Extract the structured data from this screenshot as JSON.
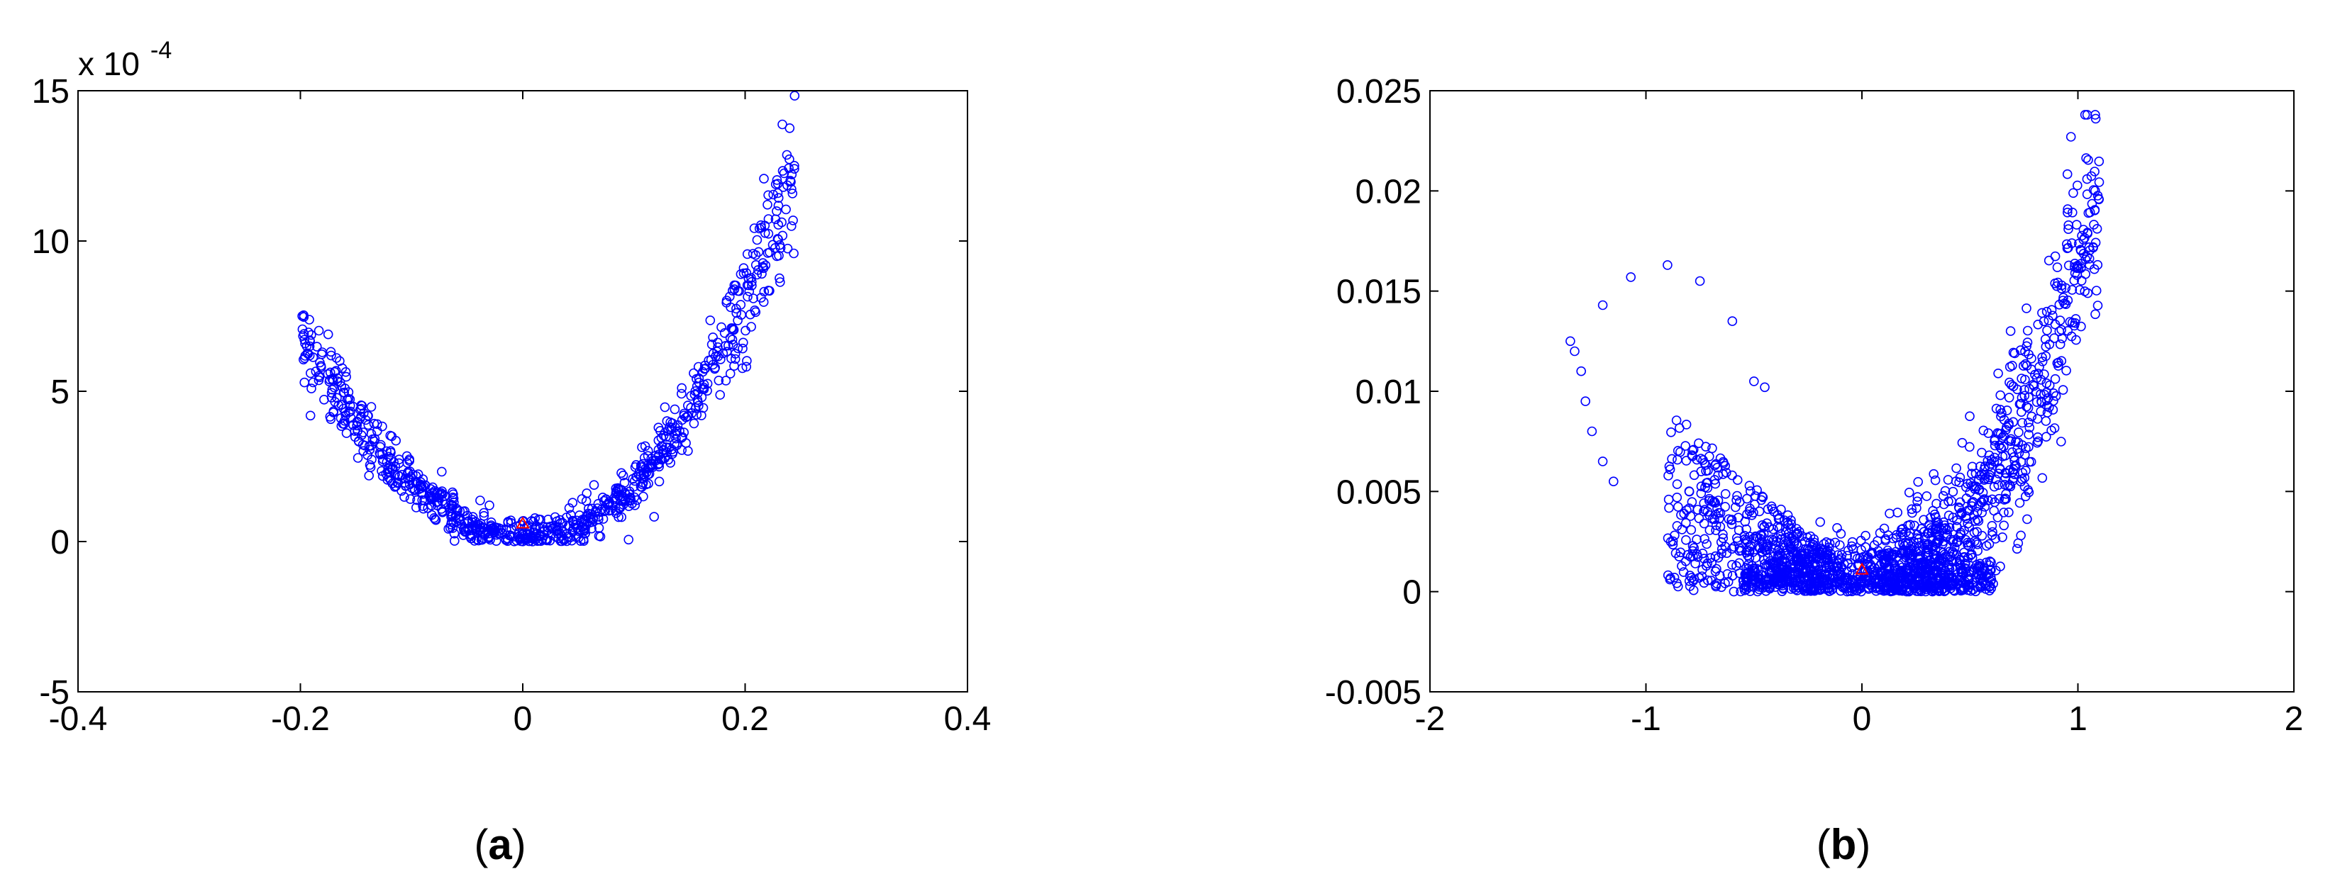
{
  "chart_data": [
    {
      "type": "scatter",
      "panel_label": "a",
      "xlim": [
        -0.4,
        0.4
      ],
      "ylim": [
        -5,
        15
      ],
      "x_ticks": [
        -0.4,
        -0.2,
        0,
        0.2,
        0.4
      ],
      "x_tick_labels": [
        "-0.4",
        "-0.2",
        "0",
        "0.2",
        "0.4"
      ],
      "y_ticks": [
        -5,
        0,
        5,
        10,
        15
      ],
      "y_tick_labels": [
        "-5",
        "0",
        "5",
        "10",
        "15"
      ],
      "y_exponent_label": "x 10",
      "y_exponent": "-4",
      "grid": false,
      "series": [
        {
          "marker": "circle",
          "color": "#0000ff",
          "shape": "u-band",
          "x_range": [
            -0.2,
            0.245
          ],
          "curve": [
            [
              -0.2,
              6.9
            ],
            [
              -0.18,
              5.5
            ],
            [
              -0.15,
              4.0
            ],
            [
              -0.1,
              2.0
            ],
            [
              -0.05,
              0.6
            ],
            [
              0.0,
              0.15
            ],
            [
              0.05,
              0.5
            ],
            [
              0.1,
              1.8
            ],
            [
              0.15,
              4.3
            ],
            [
              0.2,
              8.0
            ],
            [
              0.245,
              12.3
            ]
          ],
          "count": 900
        },
        {
          "marker": "triangle",
          "color": "#ff0000",
          "points": [
            [
              0.0,
              0.6
            ]
          ]
        }
      ]
    },
    {
      "type": "scatter",
      "panel_label": "b",
      "xlim": [
        -2,
        2
      ],
      "ylim": [
        -0.005,
        0.025
      ],
      "x_ticks": [
        -2,
        -1,
        0,
        1,
        2
      ],
      "x_tick_labels": [
        "-2",
        "-1",
        "0",
        "1",
        "2"
      ],
      "y_ticks": [
        -0.005,
        0,
        0.005,
        0.01,
        0.015,
        0.02,
        0.025
      ],
      "y_tick_labels": [
        "-0.005",
        "0",
        "0.005",
        "0.01",
        "0.015",
        "0.02",
        "0.025"
      ],
      "grid": false,
      "series": [
        {
          "marker": "circle",
          "color": "#0000ff",
          "shape": "v-cloud",
          "x_range": [
            -1.35,
            1.1
          ],
          "outliers": [
            [
              -1.35,
              0.0125
            ],
            [
              -1.33,
              0.012
            ],
            [
              -1.3,
              0.011
            ],
            [
              -1.28,
              0.0095
            ],
            [
              -1.25,
              0.008
            ],
            [
              -1.2,
              0.0065
            ],
            [
              -1.15,
              0.0055
            ],
            [
              -1.07,
              0.0157
            ],
            [
              -1.2,
              0.0143
            ],
            [
              -0.9,
              0.0163
            ],
            [
              -0.75,
              0.0155
            ],
            [
              -0.6,
              0.0135
            ],
            [
              -0.5,
              0.0105
            ],
            [
              -0.45,
              0.0102
            ]
          ],
          "count": 1800
        },
        {
          "marker": "triangle",
          "color": "#ff0000",
          "points": [
            [
              0.0,
              0.0011
            ]
          ]
        }
      ]
    }
  ]
}
